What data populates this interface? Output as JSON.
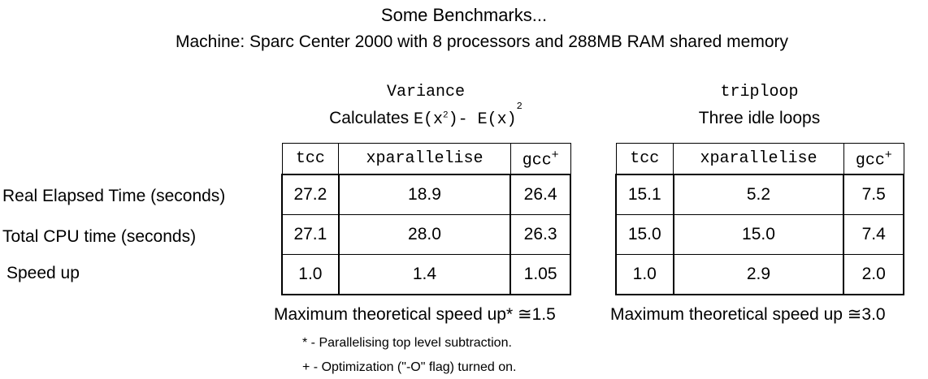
{
  "title": "Some Benchmarks...",
  "subtitle": "Machine: Sparc Center 2000 with 8 processors and  288MB RAM shared memory",
  "row_labels": [
    "Real Elapsed Time (seconds)",
    "Total CPU time (seconds)",
    "Speed up"
  ],
  "variance": {
    "name": "Variance",
    "desc_prefix": "Calculates",
    "formula_a": "E(x",
    "formula_sq1": "2",
    "formula_b": ")- E(x)",
    "formula_sq2": "2",
    "headers": [
      "tcc",
      "xparallelise",
      "gcc"
    ],
    "header_sup": "+",
    "rows": [
      [
        "27.2",
        "18.9",
        "26.4"
      ],
      [
        "27.1",
        "28.0",
        "26.3"
      ],
      [
        "1.0",
        "1.4",
        "1.05"
      ]
    ],
    "max_speedup": "Maximum theoretical speed up* ≅1.5"
  },
  "triploop": {
    "name": "triploop",
    "desc": "Three idle loops",
    "headers": [
      "tcc",
      "xparallelise",
      "gcc"
    ],
    "header_sup": "+",
    "rows": [
      [
        "15.1",
        "5.2",
        "7.5"
      ],
      [
        "15.0",
        "15.0",
        "7.4"
      ],
      [
        "1.0",
        "2.9",
        "2.0"
      ]
    ],
    "max_speedup": "Maximum theoretical speed up ≅3.0"
  },
  "notes": [
    "* - Parallelising top level subtraction.",
    "+ - Optimization (\"-O\" flag) turned on."
  ]
}
